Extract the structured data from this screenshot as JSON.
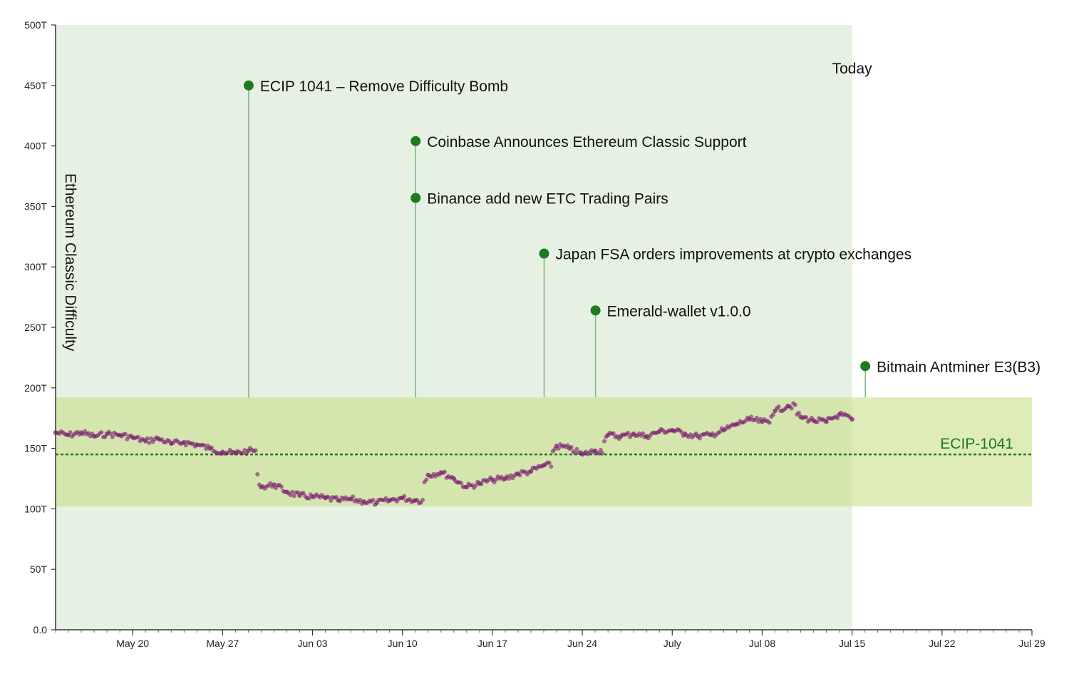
{
  "chart_data": {
    "type": "scatter",
    "ylabel": "Ethereum Classic Difficulty",
    "ylim": [
      0,
      500
    ],
    "y_unit_suffix": "T",
    "yticks": [
      0,
      50,
      100,
      150,
      200,
      250,
      300,
      350,
      400,
      450,
      500
    ],
    "ytick_labels": [
      "0.0",
      "50T",
      "100T",
      "150T",
      "200T",
      "250T",
      "300T",
      "350T",
      "400T",
      "450T",
      "500T"
    ],
    "xlim": [
      "2018-05-14",
      "2018-07-29"
    ],
    "xticks": [
      "2018-05-20",
      "2018-05-27",
      "2018-06-03",
      "2018-06-10",
      "2018-06-17",
      "2018-06-24",
      "2018-07-01",
      "2018-07-08",
      "2018-07-15",
      "2018-07-22",
      "2018-07-29"
    ],
    "xtick_labels": [
      "May 20",
      "May 27",
      "Jun 03",
      "Jun 10",
      "Jun 17",
      "Jun 24",
      "July",
      "Jul 08",
      "Jul 15",
      "Jul 22",
      "Jul 29"
    ],
    "today": "2018-07-15",
    "today_label": "Today",
    "band": {
      "y0": 102,
      "y1": 192
    },
    "reference_line": {
      "y": 145,
      "label": "ECIP-1041"
    },
    "series_color": "#7a1a6e",
    "annotation_color": "#1f7a1f",
    "annotations": [
      {
        "date": "2018-05-29",
        "y": 450,
        "label": "ECIP 1041 – Remove Difficulty Bomb"
      },
      {
        "date": "2018-06-11",
        "y": 404,
        "label": "Coinbase Announces Ethereum Classic Support"
      },
      {
        "date": "2018-06-11",
        "y": 357,
        "label": "Binance add new ETC Trading Pairs"
      },
      {
        "date": "2018-06-21",
        "y": 311,
        "label": "Japan FSA orders improvements at crypto exchanges"
      },
      {
        "date": "2018-06-25",
        "y": 264,
        "label": "Emerald-wallet v1.0.0"
      },
      {
        "date": "2018-07-16",
        "y": 218,
        "label": "Bitmain Antminer E3(B3)"
      }
    ],
    "series": [
      {
        "points": [
          [
            "2018-05-14",
            163
          ],
          [
            "2018-05-15",
            161
          ],
          [
            "2018-05-16",
            163
          ],
          [
            "2018-05-17",
            160
          ],
          [
            "2018-05-18",
            162
          ],
          [
            "2018-05-19",
            161
          ],
          [
            "2018-05-20",
            159
          ],
          [
            "2018-05-21",
            156
          ],
          [
            "2018-05-22",
            158
          ],
          [
            "2018-05-23",
            154
          ],
          [
            "2018-05-24",
            155
          ],
          [
            "2018-05-25",
            153
          ],
          [
            "2018-05-26",
            150
          ],
          [
            "2018-05-27",
            147
          ],
          [
            "2018-05-28",
            146
          ],
          [
            "2018-05-29",
            148
          ],
          [
            "2018-05-30",
            118
          ],
          [
            "2018-05-31",
            120
          ],
          [
            "2018-06-01",
            114
          ],
          [
            "2018-06-02",
            111
          ],
          [
            "2018-06-03",
            110
          ],
          [
            "2018-06-04",
            109
          ],
          [
            "2018-06-05",
            107
          ],
          [
            "2018-06-06",
            108
          ],
          [
            "2018-06-07",
            106
          ],
          [
            "2018-06-08",
            105
          ],
          [
            "2018-06-09",
            107
          ],
          [
            "2018-06-10",
            109
          ],
          [
            "2018-06-11",
            107
          ],
          [
            "2018-06-12",
            128
          ],
          [
            "2018-06-13",
            130
          ],
          [
            "2018-06-14",
            125
          ],
          [
            "2018-06-15",
            118
          ],
          [
            "2018-06-16",
            121
          ],
          [
            "2018-06-17",
            124
          ],
          [
            "2018-06-18",
            125
          ],
          [
            "2018-06-19",
            129
          ],
          [
            "2018-06-20",
            131
          ],
          [
            "2018-06-21",
            136
          ],
          [
            "2018-06-22",
            152
          ],
          [
            "2018-06-23",
            150
          ],
          [
            "2018-06-24",
            145
          ],
          [
            "2018-06-25",
            148
          ],
          [
            "2018-06-26",
            161
          ],
          [
            "2018-06-27",
            160
          ],
          [
            "2018-06-28",
            162
          ],
          [
            "2018-06-29",
            160
          ],
          [
            "2018-06-30",
            164
          ],
          [
            "2018-07-01",
            165
          ],
          [
            "2018-07-02",
            162
          ],
          [
            "2018-07-03",
            160
          ],
          [
            "2018-07-04",
            161
          ],
          [
            "2018-07-05",
            165
          ],
          [
            "2018-07-06",
            170
          ],
          [
            "2018-07-07",
            174
          ],
          [
            "2018-07-08",
            172
          ],
          [
            "2018-07-09",
            181
          ],
          [
            "2018-07-10",
            185
          ],
          [
            "2018-07-11",
            176
          ],
          [
            "2018-07-12",
            173
          ],
          [
            "2018-07-13",
            172
          ],
          [
            "2018-07-14",
            178
          ],
          [
            "2018-07-15",
            174
          ]
        ]
      }
    ]
  }
}
